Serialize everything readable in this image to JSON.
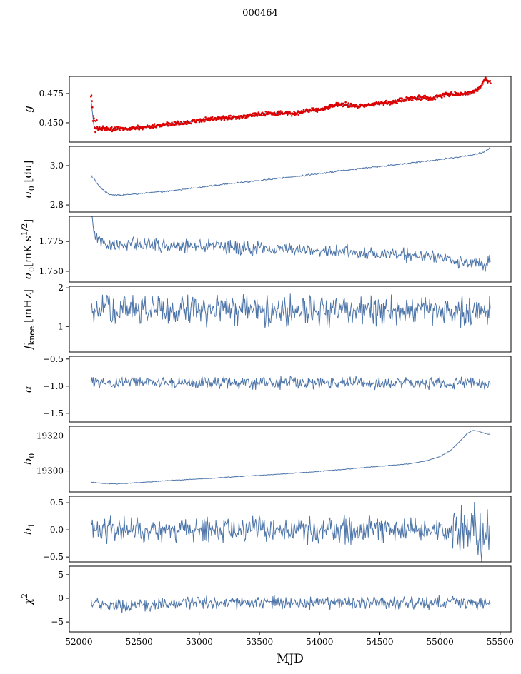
{
  "chart_data": {
    "type": "line",
    "title": "000464",
    "xlabel": "MJD",
    "x_range": [
      51920,
      55590
    ],
    "x_tick_values": [
      52000,
      52500,
      53000,
      53500,
      54000,
      54500,
      55000,
      55500
    ],
    "x_tick_labels": [
      "52000",
      "52500",
      "53000",
      "53500",
      "54000",
      "54500",
      "55000",
      "55500"
    ],
    "grid": false,
    "legend": "none",
    "panels": [
      {
        "ylabel": "g",
        "ylabel_parts": [
          {
            "t": "g",
            "s": "i"
          }
        ],
        "ylim": [
          0.4335,
          0.4896
        ],
        "yticks": [
          {
            "v": 0.45,
            "label": "0.450"
          },
          {
            "v": 0.475,
            "label": "0.475"
          }
        ],
        "trend": [
          [
            52100,
            0.47
          ],
          [
            52112,
            0.4585
          ],
          [
            52125,
            0.447
          ],
          [
            52150,
            0.4455
          ],
          [
            52250,
            0.4447
          ],
          [
            52400,
            0.4452
          ],
          [
            52550,
            0.4465
          ],
          [
            52700,
            0.4482
          ],
          [
            52850,
            0.4498
          ],
          [
            53000,
            0.4522
          ],
          [
            53120,
            0.4536
          ],
          [
            53250,
            0.4544
          ],
          [
            53400,
            0.4558
          ],
          [
            53520,
            0.4576
          ],
          [
            53650,
            0.4583
          ],
          [
            53780,
            0.458
          ],
          [
            53900,
            0.4602
          ],
          [
            54000,
            0.4615
          ],
          [
            54120,
            0.4648
          ],
          [
            54220,
            0.4655
          ],
          [
            54320,
            0.4642
          ],
          [
            54420,
            0.4655
          ],
          [
            54550,
            0.4668
          ],
          [
            54650,
            0.4685
          ],
          [
            54750,
            0.4708
          ],
          [
            54850,
            0.4716
          ],
          [
            54930,
            0.4706
          ],
          [
            55020,
            0.4737
          ],
          [
            55100,
            0.4747
          ],
          [
            55170,
            0.474
          ],
          [
            55250,
            0.4757
          ],
          [
            55310,
            0.4778
          ],
          [
            55340,
            0.4815
          ],
          [
            55370,
            0.4872
          ],
          [
            55400,
            0.486
          ],
          [
            55420,
            0.4848
          ]
        ],
        "series": [
          {
            "name": "g-fit-line",
            "style": "line",
            "color": "#4c74a8",
            "seed": 101,
            "noise": 0.0005,
            "step": 5,
            "x_start": 52100,
            "x_end": 55420
          },
          {
            "name": "g-data-points",
            "style": "scatter",
            "color": "#dd0000",
            "r": 1.3,
            "seed": 102,
            "noise": 0.0012,
            "step": 4,
            "x_start": 52100,
            "x_end": 55420,
            "noise_boost": [
              {
                "from": 52100,
                "to": 52155,
                "factor": 4.5
              }
            ]
          }
        ]
      },
      {
        "ylabel": "sigma0 [du]",
        "ylabel_parts": [
          {
            "t": "σ",
            "s": "i"
          },
          {
            "t": "0",
            "s": "sub"
          },
          {
            "t": " [du]",
            "s": "n"
          }
        ],
        "ylim": [
          2.764,
          3.098
        ],
        "yticks": [
          {
            "v": 2.8,
            "label": "2.8"
          },
          {
            "v": 3.0,
            "label": "3.0"
          }
        ],
        "trend": [
          [
            52100,
            2.952
          ],
          [
            52170,
            2.895
          ],
          [
            52250,
            2.853
          ],
          [
            52350,
            2.85
          ],
          [
            52500,
            2.857
          ],
          [
            52650,
            2.866
          ],
          [
            52800,
            2.875
          ],
          [
            52950,
            2.886
          ],
          [
            53100,
            2.897
          ],
          [
            53250,
            2.908
          ],
          [
            53400,
            2.918
          ],
          [
            53550,
            2.928
          ],
          [
            53700,
            2.938
          ],
          [
            53850,
            2.948
          ],
          [
            54000,
            2.96
          ],
          [
            54150,
            2.972
          ],
          [
            54300,
            2.983
          ],
          [
            54450,
            2.993
          ],
          [
            54600,
            3.003
          ],
          [
            54750,
            3.013
          ],
          [
            54900,
            3.024
          ],
          [
            55000,
            3.031
          ],
          [
            55100,
            3.04
          ],
          [
            55200,
            3.049
          ],
          [
            55300,
            3.058
          ],
          [
            55360,
            3.068
          ],
          [
            55400,
            3.082
          ],
          [
            55420,
            3.09
          ]
        ],
        "series": [
          {
            "name": "sigma0-du-line",
            "style": "line",
            "color": "#4c74a8",
            "seed": 201,
            "noise": 0.0025,
            "step": 6,
            "x_start": 52100,
            "x_end": 55420
          }
        ]
      },
      {
        "ylabel": "sigma0 [mK s^(1/2)]",
        "ylabel_parts": [
          {
            "t": "σ",
            "s": "i"
          },
          {
            "t": "0",
            "s": "sub"
          },
          {
            "t": "[mK s",
            "s": "n"
          },
          {
            "t": "1/2",
            "s": "sup"
          },
          {
            "t": "]",
            "s": "n"
          }
        ],
        "ylim": [
          1.741,
          1.796
        ],
        "yticks": [
          {
            "v": 1.75,
            "label": "1.750"
          },
          {
            "v": 1.775,
            "label": "1.775"
          }
        ],
        "trend": [
          [
            52100,
            1.7955
          ],
          [
            52130,
            1.784
          ],
          [
            52170,
            1.776
          ],
          [
            52250,
            1.7725
          ],
          [
            52500,
            1.773
          ],
          [
            52800,
            1.7715
          ],
          [
            53200,
            1.77
          ],
          [
            53600,
            1.7685
          ],
          [
            54000,
            1.7675
          ],
          [
            54400,
            1.765
          ],
          [
            54800,
            1.763
          ],
          [
            55100,
            1.76
          ],
          [
            55300,
            1.7575
          ],
          [
            55380,
            1.756
          ],
          [
            55420,
            1.762
          ]
        ],
        "series": [
          {
            "name": "sigma0-mk-line",
            "style": "line",
            "color": "#4c74a8",
            "seed": 301,
            "noise": 0.004,
            "step": 6,
            "x_start": 52100,
            "x_end": 55420
          }
        ]
      },
      {
        "ylabel": "f_knee [mHz]",
        "ylabel_parts": [
          {
            "t": "f",
            "s": "i"
          },
          {
            "t": "knee",
            "s": "sub"
          },
          {
            "t": " [mHz]",
            "s": "n"
          }
        ],
        "ylim": [
          0.34,
          2.04
        ],
        "yticks": [
          {
            "v": 1,
            "label": "1"
          },
          {
            "v": 2,
            "label": "2"
          }
        ],
        "trend": [
          [
            52100,
            1.43
          ],
          [
            53800,
            1.41
          ],
          [
            55420,
            1.4
          ]
        ],
        "series": [
          {
            "name": "fknee-line",
            "style": "line",
            "color": "#4c74a8",
            "seed": 401,
            "noise": 0.27,
            "step": 6,
            "x_start": 52100,
            "x_end": 55420
          }
        ]
      },
      {
        "ylabel": "alpha",
        "ylabel_parts": [
          {
            "t": "α",
            "s": "i"
          }
        ],
        "ylim": [
          -1.66,
          -0.45
        ],
        "yticks": [
          {
            "v": -1.5,
            "label": "−1.5"
          },
          {
            "v": -1.0,
            "label": "−1.0"
          },
          {
            "v": -0.5,
            "label": "−0.5"
          }
        ],
        "trend": [
          [
            52100,
            -0.935
          ],
          [
            55420,
            -0.95
          ]
        ],
        "series": [
          {
            "name": "alpha-line",
            "style": "line",
            "color": "#4c74a8",
            "seed": 501,
            "noise": 0.075,
            "step": 6,
            "x_start": 52100,
            "x_end": 55420
          }
        ]
      },
      {
        "ylabel": "b0",
        "ylabel_parts": [
          {
            "t": "b",
            "s": "i"
          },
          {
            "t": "0",
            "s": "sub"
          }
        ],
        "ylim": [
          19288,
          19325.5
        ],
        "yticks": [
          {
            "v": 19300,
            "label": "19300"
          },
          {
            "v": 19320,
            "label": "19320"
          }
        ],
        "trend": [
          [
            52100,
            19293.6
          ],
          [
            52200,
            19292.9
          ],
          [
            52320,
            19292.6
          ],
          [
            52500,
            19293.4
          ],
          [
            52800,
            19294.7
          ],
          [
            53100,
            19295.8
          ],
          [
            53400,
            19297.1
          ],
          [
            53700,
            19298.3
          ],
          [
            54000,
            19299.8
          ],
          [
            54200,
            19300.9
          ],
          [
            54400,
            19302.1
          ],
          [
            54600,
            19303.2
          ],
          [
            54750,
            19304.1
          ],
          [
            54900,
            19306.0
          ],
          [
            55000,
            19308.2
          ],
          [
            55080,
            19311.3
          ],
          [
            55150,
            19315.8
          ],
          [
            55220,
            19321.0
          ],
          [
            55270,
            19323.1
          ],
          [
            55320,
            19322.7
          ],
          [
            55370,
            19321.5
          ],
          [
            55420,
            19320.8
          ]
        ],
        "series": [
          {
            "name": "b0-line",
            "style": "line",
            "color": "#4c74a8",
            "seed": 601,
            "noise": 0.12,
            "step": 6,
            "x_start": 52100,
            "x_end": 55420
          }
        ]
      },
      {
        "ylabel": "b1",
        "ylabel_parts": [
          {
            "t": "b",
            "s": "i"
          },
          {
            "t": "1",
            "s": "sub"
          }
        ],
        "ylim": [
          -0.59,
          0.62
        ],
        "yticks": [
          {
            "v": -0.5,
            "label": "−0.5"
          },
          {
            "v": 0.0,
            "label": "0.0"
          },
          {
            "v": 0.5,
            "label": "0.5"
          }
        ],
        "trend": [
          [
            52100,
            0.02
          ],
          [
            55420,
            -0.02
          ]
        ],
        "series": [
          {
            "name": "b1-line",
            "style": "line",
            "color": "#4c74a8",
            "seed": 701,
            "noise": 0.16,
            "step": 6,
            "x_start": 52100,
            "x_end": 55420,
            "noise_boost": [
              {
                "from": 55080,
                "to": 55420,
                "factor": 2.1
              }
            ]
          }
        ]
      },
      {
        "ylabel": "chi^2",
        "ylabel_parts": [
          {
            "t": "χ",
            "s": "i"
          },
          {
            "t": "2",
            "s": "sup"
          }
        ],
        "ylim": [
          -7.1,
          6.8
        ],
        "yticks": [
          {
            "v": -5,
            "label": "−5"
          },
          {
            "v": 0,
            "label": "0"
          },
          {
            "v": 5,
            "label": "5"
          }
        ],
        "trend": [
          [
            52100,
            -0.7
          ],
          [
            52250,
            -1.5
          ],
          [
            52450,
            -1.7
          ],
          [
            52700,
            -1.2
          ],
          [
            53000,
            -0.95
          ],
          [
            54000,
            -0.9
          ],
          [
            55420,
            -0.85
          ]
        ],
        "series": [
          {
            "name": "chi2-line",
            "style": "line",
            "color": "#4c74a8",
            "seed": 801,
            "noise": 0.95,
            "step": 6,
            "x_start": 52100,
            "x_end": 55420
          }
        ]
      }
    ]
  }
}
